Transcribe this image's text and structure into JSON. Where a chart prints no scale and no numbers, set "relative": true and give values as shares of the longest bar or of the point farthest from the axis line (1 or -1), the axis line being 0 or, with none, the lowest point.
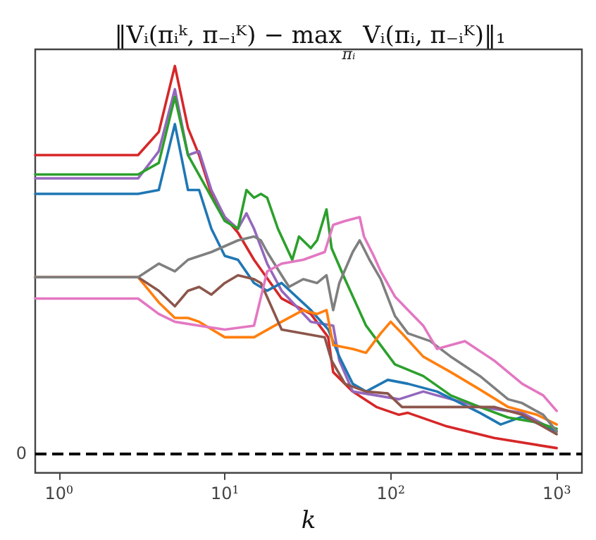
{
  "chart_data": {
    "type": "line",
    "title": "‖Vᵢ(πᵢᵏ, π₋ᵢᴷ) − max$_{πᵢ}$ Vᵢ(πᵢ, π₋ᵢᴷ)‖₁",
    "xlabel": "k",
    "relative": true,
    "log": "x",
    "xlim": [
      0.72,
      1420
    ],
    "xticks": [
      {
        "value": 1,
        "label": "10$^{0}$"
      },
      {
        "value": 10,
        "label": "10$^{1}$"
      },
      {
        "value": 100,
        "label": "10$^{2}$"
      },
      {
        "value": 1000,
        "label": "10$^{3}$"
      }
    ],
    "ref_lines": [
      {
        "axis": "y",
        "value": 0,
        "label": "0",
        "color": "#000000",
        "line_style": "dashed"
      }
    ],
    "series": [
      {
        "color": "#d62728",
        "x": [
          0.72,
          3,
          4,
          5,
          6,
          7,
          8.3,
          10,
          12,
          15,
          22,
          33,
          42,
          45,
          59,
          82,
          112,
          127,
          218,
          420,
          1000
        ],
        "values": [
          0.77,
          0.77,
          0.83,
          1,
          0.84,
          0.77,
          0.67,
          0.61,
          0.57,
          0.5,
          0.4,
          0.36,
          0.3,
          0.21,
          0.16,
          0.12,
          0.1,
          0.105,
          0.07,
          0.04,
          0.014
        ]
      },
      {
        "color": "#9467bd",
        "x": [
          0.72,
          3,
          4,
          5,
          6,
          7,
          8.3,
          10,
          12,
          13.5,
          15,
          18,
          22,
          33,
          45,
          49,
          59,
          82,
          112,
          157,
          190,
          345,
          620,
          1000
        ],
        "values": [
          0.71,
          0.71,
          0.78,
          0.94,
          0.77,
          0.78,
          0.68,
          0.61,
          0.58,
          0.62,
          0.58,
          0.49,
          0.42,
          0.34,
          0.33,
          0.24,
          0.16,
          0.15,
          0.14,
          0.16,
          0.15,
          0.12,
          0.105,
          0.057
        ]
      },
      {
        "color": "#1f77b4",
        "x": [
          0.72,
          3,
          4,
          5,
          6,
          7,
          8.3,
          10,
          12,
          15,
          18,
          22,
          33,
          42,
          49,
          59,
          71,
          96,
          127,
          190,
          345,
          460,
          620,
          1000
        ],
        "values": [
          0.67,
          0.67,
          0.68,
          0.85,
          0.68,
          0.68,
          0.58,
          0.51,
          0.5,
          0.44,
          0.42,
          0.44,
          0.37,
          0.32,
          0.25,
          0.18,
          0.16,
          0.19,
          0.18,
          0.16,
          0.105,
          0.075,
          0.095,
          0.057
        ]
      },
      {
        "color": "#2ca02c",
        "x": [
          0.72,
          3,
          4,
          5,
          6,
          10,
          12,
          13.5,
          15,
          16.5,
          18,
          20.9,
          25.5,
          28,
          33,
          36,
          41,
          44,
          53,
          71,
          106,
          157,
          230,
          345,
          510,
          760,
          1000
        ],
        "values": [
          0.72,
          0.72,
          0.75,
          0.92,
          0.77,
          0.6,
          0.58,
          0.68,
          0.66,
          0.67,
          0.66,
          0.58,
          0.5,
          0.56,
          0.53,
          0.55,
          0.63,
          0.53,
          0.45,
          0.33,
          0.23,
          0.2,
          0.15,
          0.12,
          0.093,
          0.08,
          0.064
        ]
      },
      {
        "color": "#ff7f0e",
        "x": [
          0.72,
          3,
          4,
          5,
          6,
          7,
          10,
          15,
          22,
          29.7,
          36,
          41,
          45,
          59,
          71,
          87,
          100,
          117,
          157,
          230,
          345,
          510,
          760,
          1000
        ],
        "values": [
          0.455,
          0.455,
          0.39,
          0.35,
          0.35,
          0.34,
          0.3,
          0.3,
          0.34,
          0.37,
          0.36,
          0.37,
          0.28,
          0.27,
          0.26,
          0.31,
          0.34,
          0.31,
          0.25,
          0.21,
          0.165,
          0.12,
          0.1,
          0.075
        ]
      },
      {
        "color": "#8c564b",
        "x": [
          0.72,
          3,
          4,
          5,
          6,
          7,
          8.3,
          10,
          12,
          15,
          16.5,
          22,
          29.7,
          40,
          44,
          53,
          71,
          96,
          117,
          190,
          420,
          620,
          1000
        ],
        "values": [
          0.455,
          0.455,
          0.42,
          0.38,
          0.42,
          0.43,
          0.41,
          0.44,
          0.46,
          0.45,
          0.44,
          0.32,
          0.31,
          0.3,
          0.24,
          0.18,
          0.16,
          0.155,
          0.12,
          0.12,
          0.12,
          0.1,
          0.05
        ]
      },
      {
        "color": "#7f7f7f",
        "x": [
          0.72,
          3,
          4,
          5,
          6,
          8.3,
          12,
          15,
          16.5,
          18,
          22,
          24.4,
          29.7,
          36,
          41,
          45,
          49,
          59,
          65,
          74.5,
          87,
          106,
          127,
          173,
          230,
          345,
          510,
          620,
          830,
          1000
        ],
        "values": [
          0.455,
          0.455,
          0.49,
          0.47,
          0.5,
          0.52,
          0.55,
          0.56,
          0.55,
          0.52,
          0.46,
          0.43,
          0.45,
          0.44,
          0.46,
          0.37,
          0.44,
          0.52,
          0.55,
          0.5,
          0.45,
          0.355,
          0.31,
          0.29,
          0.25,
          0.2,
          0.14,
          0.13,
          0.1,
          0.057
        ]
      },
      {
        "color": "#e377c2",
        "x": [
          0.72,
          3,
          4,
          5,
          7,
          10,
          15,
          18,
          22,
          29.7,
          40,
          45,
          53,
          65,
          69,
          79,
          87,
          106,
          157,
          190,
          230,
          280,
          420,
          510,
          620,
          830,
          1000
        ],
        "values": [
          0.4,
          0.4,
          0.36,
          0.34,
          0.33,
          0.32,
          0.33,
          0.47,
          0.49,
          0.5,
          0.52,
          0.59,
          0.6,
          0.61,
          0.56,
          0.51,
          0.47,
          0.405,
          0.33,
          0.27,
          0.28,
          0.29,
          0.24,
          0.21,
          0.18,
          0.15,
          0.11
        ]
      }
    ]
  }
}
